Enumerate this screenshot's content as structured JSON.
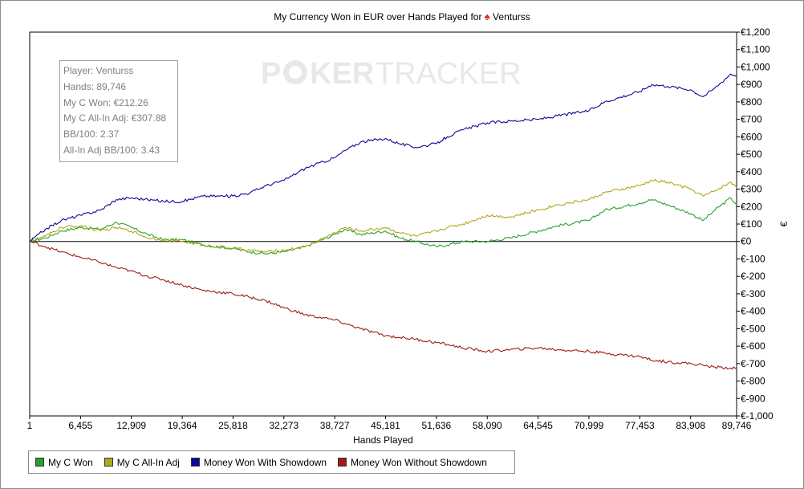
{
  "chart_data": {
    "type": "line",
    "title_prefix": "My Currency Won in EUR over Hands Played for",
    "title_player": "Venturss",
    "title_icon": "spade-icon",
    "xlabel": "Hands Played",
    "ylabel": "€",
    "x_ticks": [
      "1",
      "6,455",
      "12,909",
      "19,364",
      "25,818",
      "32,273",
      "38,727",
      "45,181",
      "51,636",
      "58,090",
      "64,545",
      "70,999",
      "77,453",
      "83,908",
      "89,746"
    ],
    "x_tick_values": [
      1,
      6455,
      12909,
      19364,
      25818,
      32273,
      38727,
      45181,
      51636,
      58090,
      64545,
      70999,
      77453,
      83908,
      89746
    ],
    "xlim": [
      1,
      89746
    ],
    "ylim": [
      -1000,
      1200
    ],
    "y_ticks": [
      "€1,200",
      "€1,100",
      "€1,000",
      "€900",
      "€800",
      "€700",
      "€600",
      "€500",
      "€400",
      "€300",
      "€200",
      "€100",
      "€0",
      "€-100",
      "€-200",
      "€-300",
      "€-400",
      "€-500",
      "€-600",
      "€-700",
      "€-800",
      "€-900",
      "€-1,000"
    ],
    "y_tick_values": [
      1200,
      1100,
      1000,
      900,
      800,
      700,
      600,
      500,
      400,
      300,
      200,
      100,
      0,
      -100,
      -200,
      -300,
      -400,
      -500,
      -600,
      -700,
      -800,
      -900,
      -1000
    ],
    "series": [
      {
        "name": "My C Won",
        "color": "#2aa02a",
        "x": [
          1,
          2000,
          4000,
          6455,
          9000,
          11000,
          12909,
          15000,
          17000,
          19364,
          22000,
          25818,
          28000,
          30000,
          32273,
          35000,
          38727,
          40000,
          42000,
          45181,
          47000,
          49000,
          51636,
          53000,
          55000,
          58090,
          61000,
          64545,
          67000,
          70999,
          73000,
          77453,
          79000,
          81000,
          83908,
          85500,
          87000,
          89000,
          89746
        ],
        "y": [
          0,
          20,
          60,
          80,
          70,
          110,
          80,
          40,
          10,
          10,
          -20,
          -40,
          -60,
          -70,
          -60,
          -30,
          40,
          70,
          40,
          60,
          20,
          0,
          -30,
          -20,
          0,
          0,
          20,
          60,
          90,
          120,
          180,
          220,
          240,
          210,
          160,
          120,
          180,
          250,
          212
        ]
      },
      {
        "name": "My C All-In Adj",
        "color": "#b0a81a",
        "x": [
          1,
          2000,
          4000,
          6455,
          9000,
          11000,
          12909,
          15000,
          17000,
          19364,
          22000,
          25818,
          28000,
          30000,
          32273,
          35000,
          38727,
          40000,
          42000,
          45181,
          47000,
          49000,
          51636,
          53000,
          55000,
          58090,
          61000,
          64545,
          67000,
          70999,
          73000,
          77453,
          79000,
          81000,
          83908,
          85500,
          87000,
          89000,
          89746
        ],
        "y": [
          0,
          30,
          80,
          90,
          60,
          80,
          60,
          20,
          10,
          0,
          -20,
          -40,
          -50,
          -60,
          -50,
          -30,
          50,
          80,
          60,
          80,
          50,
          30,
          60,
          80,
          100,
          150,
          140,
          180,
          210,
          240,
          280,
          320,
          350,
          340,
          300,
          260,
          290,
          340,
          308
        ]
      },
      {
        "name": "Money Won With Showdown",
        "color": "#0a0a96",
        "x": [
          1,
          2000,
          4000,
          6455,
          9000,
          11000,
          12909,
          15000,
          17000,
          19364,
          22000,
          25818,
          28000,
          30000,
          32273,
          35000,
          38727,
          40000,
          42000,
          45181,
          47000,
          49000,
          51636,
          53000,
          55000,
          58090,
          61000,
          64545,
          67000,
          70999,
          73000,
          77453,
          79000,
          81000,
          83908,
          85500,
          87000,
          89000,
          89746
        ],
        "y": [
          0,
          70,
          120,
          150,
          180,
          240,
          250,
          240,
          230,
          230,
          260,
          260,
          280,
          320,
          350,
          420,
          480,
          520,
          570,
          590,
          560,
          540,
          560,
          600,
          640,
          680,
          690,
          700,
          720,
          750,
          800,
          860,
          900,
          890,
          870,
          830,
          880,
          960,
          950
        ]
      },
      {
        "name": "Money Won Without Showdown",
        "color": "#a01a1a",
        "x": [
          1,
          2000,
          4000,
          6455,
          9000,
          11000,
          12909,
          15000,
          17000,
          19364,
          22000,
          25818,
          28000,
          30000,
          32273,
          35000,
          38727,
          40000,
          42000,
          45181,
          47000,
          49000,
          51636,
          53000,
          55000,
          58090,
          61000,
          64545,
          67000,
          70999,
          73000,
          77453,
          79000,
          81000,
          83908,
          85500,
          87000,
          89000,
          89746
        ],
        "y": [
          0,
          -30,
          -60,
          -90,
          -120,
          -150,
          -170,
          -200,
          -220,
          -250,
          -280,
          -300,
          -320,
          -340,
          -380,
          -420,
          -450,
          -470,
          -500,
          -540,
          -550,
          -560,
          -580,
          -590,
          -610,
          -630,
          -620,
          -610,
          -620,
          -630,
          -640,
          -660,
          -680,
          -690,
          -700,
          -710,
          -720,
          -725,
          -730
        ]
      }
    ],
    "legend_position": "bottom-left",
    "grid": false,
    "zero_line": true
  },
  "stats": {
    "player": "Player: Venturss",
    "hands": "Hands: 89,746",
    "won": "My C Won: €212.26",
    "allin": "My C All-In Adj: €307.88",
    "bb100": "BB/100: 2.37",
    "allin_bb100": "All-In Adj BB/100: 3.43"
  },
  "watermark": {
    "left": "P",
    "chip": "O",
    "right": "KER",
    "tracker": "TRACKER"
  },
  "legend": {
    "items": [
      {
        "label": "My C Won",
        "color": "#2aa02a"
      },
      {
        "label": "My C All-In Adj",
        "color": "#b0a81a"
      },
      {
        "label": "Money Won With Showdown",
        "color": "#0a0a96"
      },
      {
        "label": "Money Won Without Showdown",
        "color": "#a01a1a"
      }
    ]
  }
}
